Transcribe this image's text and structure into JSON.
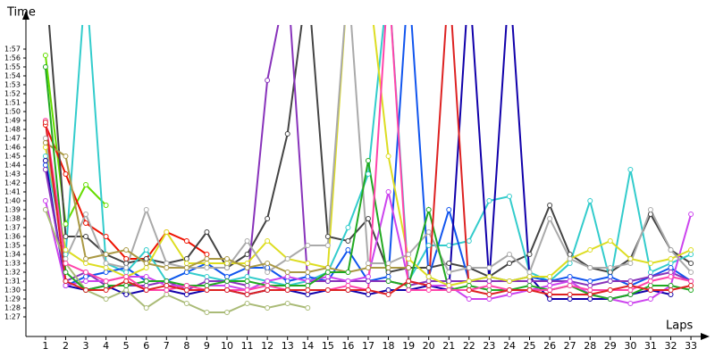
{
  "chart_data": {
    "type": "line",
    "y_label": "Time",
    "x_label": "Laps",
    "x": [
      1,
      2,
      3,
      4,
      5,
      6,
      7,
      8,
      9,
      10,
      11,
      12,
      13,
      14,
      15,
      16,
      17,
      18,
      19,
      20,
      21,
      22,
      23,
      24,
      25,
      26,
      27,
      28,
      29,
      30,
      31,
      32,
      33
    ],
    "xlim": [
      0.03,
      33.75
    ],
    "xticks": [
      1,
      2,
      3,
      4,
      5,
      6,
      7,
      8,
      9,
      10,
      11,
      12,
      13,
      14,
      15,
      16,
      17,
      18,
      19,
      20,
      21,
      22,
      23,
      24,
      25,
      26,
      27,
      28,
      29,
      30,
      31,
      32,
      33
    ],
    "ylim": [
      84.8,
      119.7
    ],
    "yticks": [
      {
        "value": 87,
        "label": "1:27"
      },
      {
        "value": 88,
        "label": "1:28"
      },
      {
        "value": 89,
        "label": "1:29"
      },
      {
        "value": 90,
        "label": "1:30"
      },
      {
        "value": 91,
        "label": "1:31"
      },
      {
        "value": 92,
        "label": "1:32"
      },
      {
        "value": 93,
        "label": "1:33"
      },
      {
        "value": 94,
        "label": "1:34"
      },
      {
        "value": 95,
        "label": "1:35"
      },
      {
        "value": 96,
        "label": "1:36"
      },
      {
        "value": 97,
        "label": "1:37"
      },
      {
        "value": 98,
        "label": "1:38"
      },
      {
        "value": 99,
        "label": "1:39"
      },
      {
        "value": 100,
        "label": "1:40"
      },
      {
        "value": 101,
        "label": "1:41"
      },
      {
        "value": 102,
        "label": "1:42"
      },
      {
        "value": 103,
        "label": "1:43"
      },
      {
        "value": 104,
        "label": "1:44"
      },
      {
        "value": 105,
        "label": "1:45"
      },
      {
        "value": 106,
        "label": "1:46"
      },
      {
        "value": 107,
        "label": "1:47"
      },
      {
        "value": 108,
        "label": "1:48"
      },
      {
        "value": 109,
        "label": "1:49"
      },
      {
        "value": 110,
        "label": "1:50"
      },
      {
        "value": 111,
        "label": "1:51"
      },
      {
        "value": 112,
        "label": "1:52"
      },
      {
        "value": 113,
        "label": "1:53"
      },
      {
        "value": 114,
        "label": "1:54"
      },
      {
        "value": 115,
        "label": "1:55"
      },
      {
        "value": 116,
        "label": "1:56"
      },
      {
        "value": 117,
        "label": "1:57"
      }
    ],
    "series": [
      {
        "color": "#66dd00",
        "values": [
          116.3,
          97.4,
          101.8,
          99.5,
          null,
          null,
          null,
          null,
          null,
          null,
          null,
          null,
          null,
          null,
          null,
          null,
          null,
          null,
          null,
          null,
          null,
          null,
          null,
          null,
          null,
          null,
          null,
          null,
          null,
          null,
          null,
          null,
          null
        ]
      },
      {
        "color": "#ee1100",
        "values": [
          108.5,
          103,
          97.5,
          96,
          93.5,
          93.5,
          96.5,
          95.5,
          94,
          null,
          null,
          null,
          null,
          null,
          null,
          null,
          null,
          null,
          null,
          null,
          null,
          null,
          null,
          null,
          null,
          null,
          null,
          null,
          null,
          null,
          null,
          null,
          null
        ]
      },
      {
        "color": "#444444",
        "values": [
          125,
          96,
          96,
          94,
          93,
          93.5,
          93,
          93.5,
          96.5,
          92.5,
          94,
          98,
          107.5,
          125,
          96,
          95.5,
          98,
          92,
          92.5,
          92.5,
          93,
          92.5,
          91.5,
          93,
          94,
          99.5,
          94,
          92.5,
          92,
          93.5,
          98.5,
          94.5,
          93
        ]
      },
      {
        "color": "#33cccc",
        "values": [
          105,
          94,
          125,
          93,
          92,
          94.5,
          91,
          92,
          91.5,
          91,
          91.5,
          91,
          90.5,
          91,
          92,
          97,
          103,
          125,
          91,
          95,
          95,
          95.5,
          100,
          100.5,
          92,
          91,
          93,
          100,
          91,
          103.5,
          92,
          93,
          94
        ]
      },
      {
        "color": "#1155ee",
        "values": [
          104,
          90.5,
          91.5,
          92,
          92.5,
          91,
          91,
          92,
          93,
          91.5,
          92.5,
          92.5,
          91,
          91.5,
          91,
          94.5,
          91,
          91.5,
          125,
          91.5,
          99,
          91,
          91.5,
          91,
          91.5,
          91,
          91.5,
          91,
          91.5,
          90.5,
          91.5,
          92.5,
          91
        ]
      },
      {
        "color": "#1100aa",
        "values": [
          104.5,
          90.5,
          90,
          90.5,
          89.5,
          90,
          90,
          89.5,
          90,
          90,
          89.5,
          90,
          90,
          89.5,
          90,
          90,
          89.5,
          90,
          90,
          90.5,
          90,
          125,
          91,
          125,
          91.5,
          89,
          89,
          89,
          89,
          89.5,
          90,
          89.5,
          null
        ]
      },
      {
        "color": "#8833bb",
        "values": [
          103.5,
          91,
          92,
          90.5,
          90.5,
          90.5,
          91,
          90,
          91,
          91,
          90.5,
          113.5,
          125,
          91,
          91,
          91,
          91,
          91,
          90.5,
          91,
          91,
          91,
          91,
          91,
          91,
          91,
          91,
          90.5,
          91,
          91,
          91.5,
          92,
          91
        ]
      },
      {
        "color": "#cc44ee",
        "values": [
          100,
          90.5,
          91,
          91,
          91.5,
          91.5,
          90.5,
          90.5,
          90.5,
          90.5,
          90,
          91,
          91.5,
          91,
          91.5,
          91,
          91.5,
          101,
          91,
          90.5,
          90.5,
          89,
          89,
          89.5,
          90,
          90.5,
          91,
          89.5,
          89,
          88.5,
          89,
          90.5,
          98.5
        ]
      },
      {
        "color": "#dddd22",
        "values": [
          106,
          94.5,
          93,
          92.5,
          91.5,
          92.5,
          96.5,
          93,
          93,
          93,
          93,
          95.5,
          93.5,
          93,
          92.5,
          125,
          125,
          105,
          93.5,
          91.5,
          90.5,
          91,
          91.5,
          91,
          91.5,
          91.5,
          93.5,
          94.5,
          95.5,
          93.5,
          93,
          93.5,
          94.5
        ]
      },
      {
        "color": "#aaaaaa",
        "values": [
          107,
          93.5,
          98.5,
          93,
          92.5,
          99,
          93,
          92.5,
          92.5,
          92.5,
          95.5,
          92,
          93.5,
          95,
          95,
          125,
          93,
          93,
          94,
          96.5,
          92,
          92.5,
          92.5,
          94,
          92,
          98,
          93.5,
          92.5,
          92.5,
          93,
          99,
          94.5,
          92
        ]
      },
      {
        "color": "#aa9944",
        "values": [
          106.5,
          105,
          93.5,
          94,
          94.5,
          93,
          92.5,
          92.5,
          93.5,
          93.5,
          92.5,
          93,
          92,
          92,
          92.5,
          92,
          92.5,
          92.5,
          92.5,
          null,
          null,
          null,
          null,
          null,
          null,
          null,
          null,
          null,
          null,
          null,
          null,
          null,
          null
        ]
      },
      {
        "color": "#aabb77",
        "values": [
          99,
          93,
          90,
          89,
          90,
          88,
          89.5,
          88.5,
          87.5,
          87.5,
          88.5,
          88,
          88.5,
          88,
          null,
          null,
          null,
          null,
          null,
          null,
          null,
          null,
          null,
          null,
          null,
          null,
          null,
          null,
          null,
          null,
          null,
          null,
          null
        ]
      },
      {
        "color": "#22aa22",
        "values": [
          115,
          92,
          90,
          90.5,
          90.5,
          91,
          91,
          90.5,
          90.5,
          91,
          91,
          90.5,
          90.5,
          90.5,
          92,
          92,
          104.5,
          91,
          90.5,
          99,
          90,
          90.5,
          90,
          90,
          90.5,
          90,
          90.5,
          89.5,
          89,
          89.5,
          90.5,
          90.5,
          90
        ]
      },
      {
        "color": "#ff44aa",
        "values": [
          109,
          93,
          92,
          91,
          91.5,
          90,
          90,
          90.5,
          90,
          90,
          90,
          90.5,
          90,
          90,
          90,
          90.5,
          90,
          125,
          90,
          90,
          90,
          90,
          90.5,
          90,
          90,
          90,
          90.5,
          90,
          90,
          90,
          91,
          91.5,
          91
        ]
      },
      {
        "color": "#dd2222",
        "values": [
          108.8,
          91,
          90,
          90,
          91,
          90,
          90.5,
          90,
          90,
          90,
          89.5,
          90,
          90,
          90,
          90,
          90,
          90,
          89.5,
          91,
          90.5,
          125,
          90,
          89.5,
          90,
          90,
          89.5,
          89.5,
          89.5,
          90,
          90.5,
          90,
          90,
          90.5
        ]
      }
    ]
  }
}
